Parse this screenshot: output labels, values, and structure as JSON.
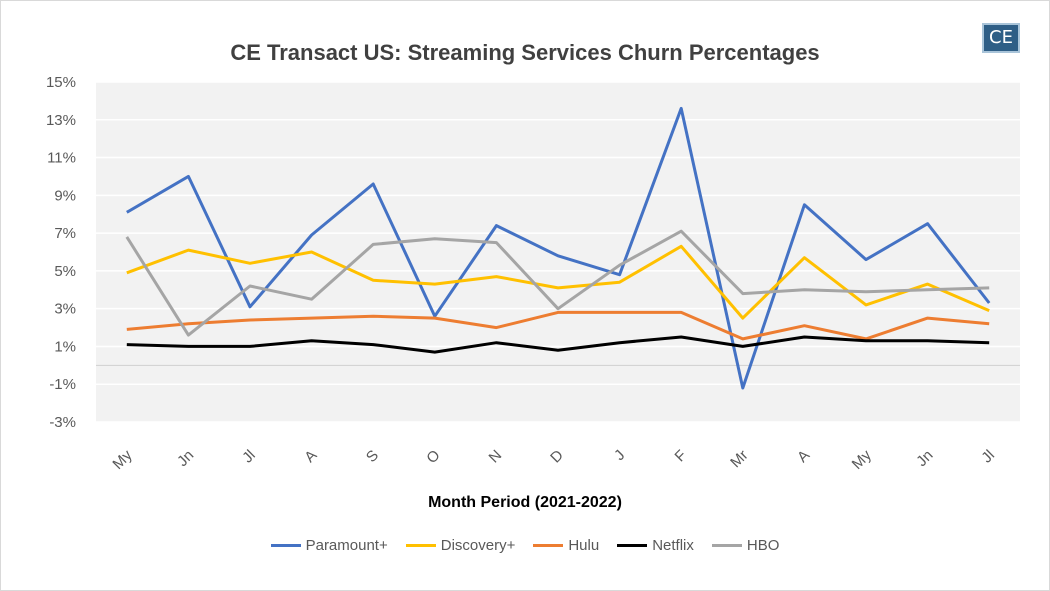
{
  "logo": {
    "text": "CE"
  },
  "chart_data": {
    "type": "line",
    "title": "CE Transact US: Streaming Services Churn Percentages",
    "xlabel": "Month Period (2021-2022)",
    "ylabel": "",
    "ylim": [
      -3,
      15
    ],
    "yticks": [
      -3,
      -1,
      1,
      3,
      5,
      7,
      9,
      11,
      13,
      15
    ],
    "ytick_labels": [
      "-3%",
      "-1%",
      "1%",
      "3%",
      "5%",
      "7%",
      "9%",
      "11%",
      "13%",
      "15%"
    ],
    "grid": true,
    "legend_position": "bottom",
    "categories": [
      "My",
      "Jn",
      "Jl",
      "A",
      "S",
      "O",
      "N",
      "D",
      "J",
      "F",
      "Mr",
      "A",
      "My",
      "Jn",
      "Jl"
    ],
    "series": [
      {
        "name": "Paramount+",
        "color": "#4472c4",
        "values": [
          8.1,
          10.0,
          3.1,
          6.9,
          9.6,
          2.6,
          7.4,
          5.8,
          4.8,
          13.6,
          -1.2,
          8.5,
          5.6,
          7.5,
          3.3
        ]
      },
      {
        "name": "Discovery+",
        "color": "#ffc000",
        "values": [
          4.9,
          6.1,
          5.4,
          6.0,
          4.5,
          4.3,
          4.7,
          4.1,
          4.4,
          6.3,
          2.5,
          5.7,
          3.2,
          4.3,
          2.9
        ]
      },
      {
        "name": "Hulu",
        "color": "#ed7d31",
        "values": [
          1.9,
          2.2,
          2.4,
          2.5,
          2.6,
          2.5,
          2.0,
          2.8,
          2.8,
          2.8,
          1.4,
          2.1,
          1.4,
          2.5,
          2.2
        ]
      },
      {
        "name": "Netflix",
        "color": "#000000",
        "values": [
          1.1,
          1.0,
          1.0,
          1.3,
          1.1,
          0.7,
          1.2,
          0.8,
          1.2,
          1.5,
          1.0,
          1.5,
          1.3,
          1.3,
          1.2
        ]
      },
      {
        "name": "HBO",
        "color": "#a5a5a5",
        "values": [
          6.8,
          1.6,
          4.2,
          3.5,
          6.4,
          6.7,
          6.5,
          3.0,
          5.3,
          7.1,
          3.8,
          4.0,
          3.9,
          4.0,
          4.1
        ]
      }
    ]
  }
}
